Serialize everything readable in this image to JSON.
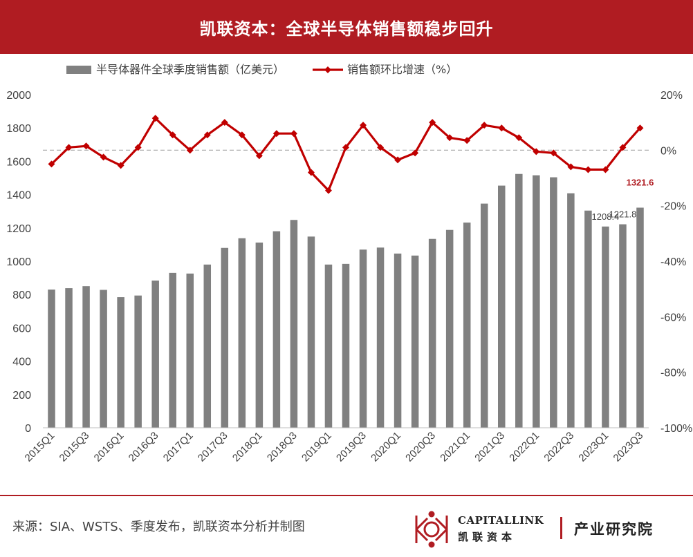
{
  "header": {
    "title": "凯联资本：全球半导体销售额稳步回升"
  },
  "chart_data": {
    "type": "bar+line",
    "categories": [
      "2015Q1",
      "2015Q2",
      "2015Q3",
      "2015Q4",
      "2016Q1",
      "2016Q2",
      "2016Q3",
      "2016Q4",
      "2017Q1",
      "2017Q2",
      "2017Q3",
      "2017Q4",
      "2018Q1",
      "2018Q2",
      "2018Q3",
      "2018Q4",
      "2019Q1",
      "2019Q2",
      "2019Q3",
      "2019Q4",
      "2020Q1",
      "2020Q2",
      "2020Q3",
      "2020Q4",
      "2021Q1",
      "2021Q2",
      "2021Q3",
      "2021Q4",
      "2022Q1",
      "2022Q2",
      "2022Q3",
      "2022Q4",
      "2023Q1",
      "2023Q2",
      "2023Q3"
    ],
    "x_tick_labels": [
      "2015Q1",
      "2015Q3",
      "2016Q1",
      "2016Q3",
      "2017Q1",
      "2017Q3",
      "2018Q1",
      "2018Q3",
      "2019Q1",
      "2019Q3",
      "2020Q1",
      "2020Q3",
      "2021Q1",
      "2021Q3",
      "2022Q1",
      "2022Q3",
      "2023Q1",
      "2023Q3"
    ],
    "bar_series": {
      "name": "半导体器件全球季度销售额（亿美元）",
      "color": "#808080",
      "values": [
        830,
        838,
        850,
        828,
        784,
        794,
        884,
        930,
        926,
        980,
        1080,
        1138,
        1112,
        1180,
        1248,
        1148,
        980,
        984,
        1070,
        1082,
        1046,
        1034,
        1134,
        1188,
        1232,
        1346,
        1454,
        1524,
        1516,
        1504,
        1408,
        1304,
        1208.4,
        1221.8,
        1321.6
      ]
    },
    "line_series": {
      "name": "销售额环比增速（%）",
      "color": "#c00000",
      "values": [
        -5,
        1,
        1.5,
        -2.5,
        -5.5,
        1,
        11.5,
        5.5,
        0,
        5.5,
        10,
        5.5,
        -2,
        6,
        6,
        -8,
        -14.5,
        1,
        9,
        1,
        -3.5,
        -1,
        10,
        4.5,
        3.5,
        9,
        8,
        4.5,
        -0.5,
        -1,
        -6,
        -7,
        -7,
        1,
        8
      ]
    },
    "data_labels": [
      {
        "index": 32,
        "series": "bar",
        "text": "1208.4",
        "color": "#404040",
        "bold": false
      },
      {
        "index": 33,
        "series": "bar",
        "text": "1221.8",
        "color": "#404040",
        "bold": false
      },
      {
        "index": 34,
        "series": "bar",
        "text": "1321.6",
        "color": "#b01c22",
        "bold": true
      }
    ],
    "y_left": {
      "ylim": [
        0,
        2000
      ],
      "ticks": [
        "0",
        "200",
        "400",
        "600",
        "800",
        "1000",
        "1200",
        "1400",
        "1600",
        "1800",
        "2000"
      ]
    },
    "y_right": {
      "ylim": [
        -100,
        20
      ],
      "ticks": [
        "20%",
        "0%",
        "-20%",
        "-40%",
        "-60%",
        "-80%",
        "-100%"
      ]
    },
    "zero_line": {
      "style": "dashed",
      "value": 0
    },
    "legend_position": "top-left",
    "grid": false
  },
  "footer": {
    "source": "来源：SIA、WSTS、季度发布，凯联资本分析并制图",
    "brand_en": "CAPITALLINK",
    "brand_cn": "凯联资本",
    "department": "产业研究院",
    "accent_color": "#b01c22"
  }
}
